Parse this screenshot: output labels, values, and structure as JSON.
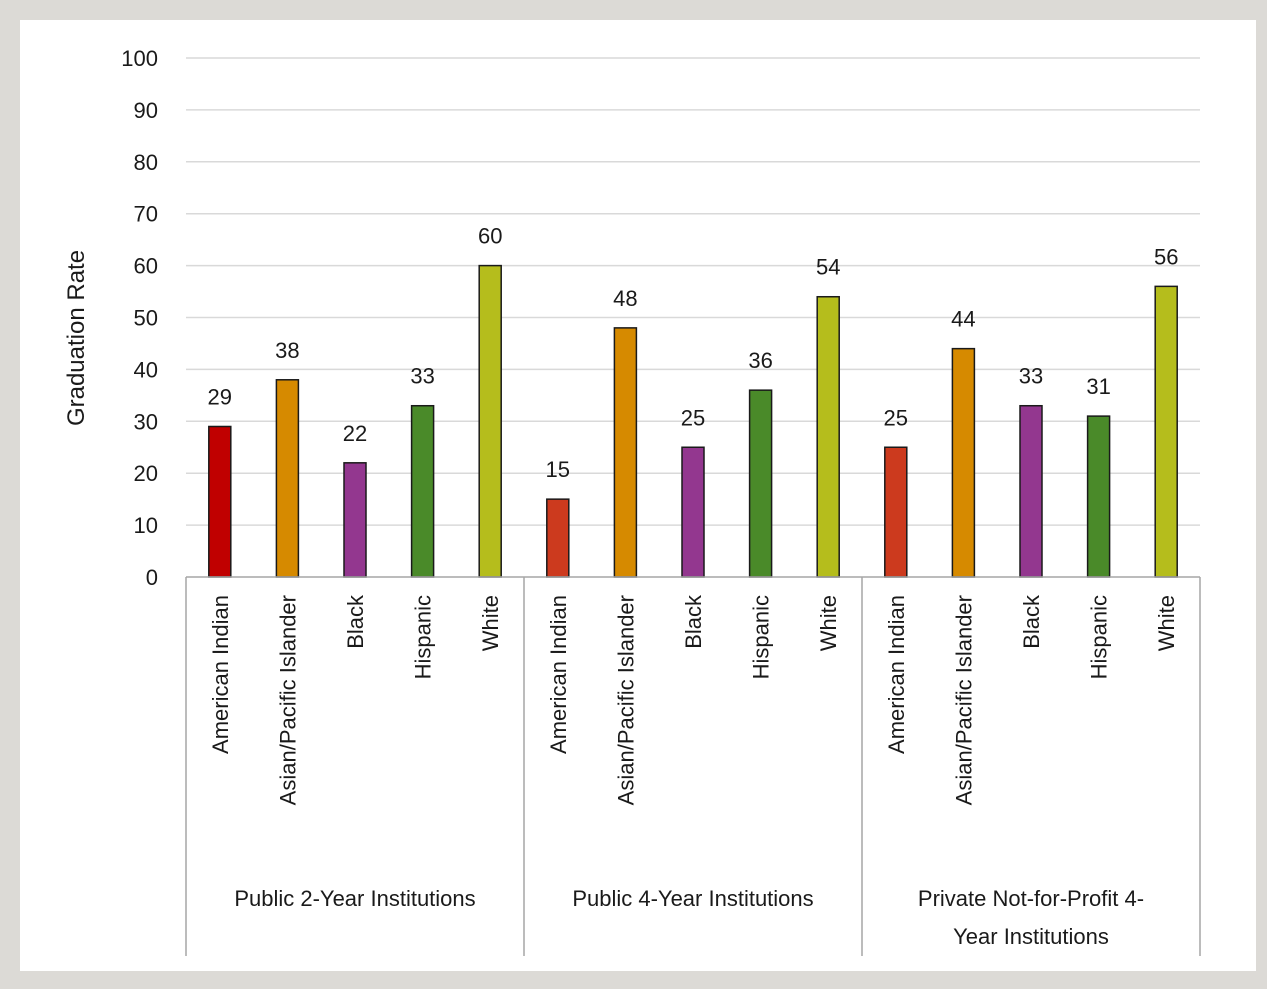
{
  "chart_data": {
    "type": "bar",
    "title": "",
    "xlabel": "",
    "ylabel": "Graduation Rate",
    "ylim": [
      0,
      100
    ],
    "yticks": [
      0,
      10,
      20,
      30,
      40,
      50,
      60,
      70,
      80,
      90,
      100
    ],
    "grid": true,
    "legend": "none",
    "groups": [
      {
        "name": "Public 2-Year Institutions",
        "categories": [
          "American Indian",
          "Asian/Pacific Islander",
          "Black",
          "Hispanic",
          "White"
        ],
        "values": [
          29,
          38,
          22,
          33,
          60
        ],
        "colors": [
          "#c00000",
          "#d68a00",
          "#93378f",
          "#4a8a29",
          "#b5bd1c"
        ]
      },
      {
        "name": "Public 4-Year Institutions",
        "categories": [
          "American Indian",
          "Asian/Pacific Islander",
          "Black",
          "Hispanic",
          "White"
        ],
        "values": [
          15,
          48,
          25,
          36,
          54
        ],
        "colors": [
          "#cc3a1e",
          "#d68a00",
          "#93378f",
          "#4a8a29",
          "#b5bd1c"
        ]
      },
      {
        "name": "Private Not-for-Profit 4-Year Institutions",
        "name_lines": [
          "Private Not-for-Profit 4-",
          "Year Institutions"
        ],
        "categories": [
          "American Indian",
          "Asian/Pacific Islander",
          "Black",
          "Hispanic",
          "White"
        ],
        "values": [
          25,
          44,
          33,
          31,
          56
        ],
        "colors": [
          "#cc3a1e",
          "#d68a00",
          "#93378f",
          "#4a8a29",
          "#b5bd1c"
        ]
      }
    ]
  },
  "colors": {
    "gridline": "#d9d9d9",
    "axis": "#a6a6a6",
    "bar_outline": "#1a1a1a",
    "frame_border": "#dcdad6"
  }
}
